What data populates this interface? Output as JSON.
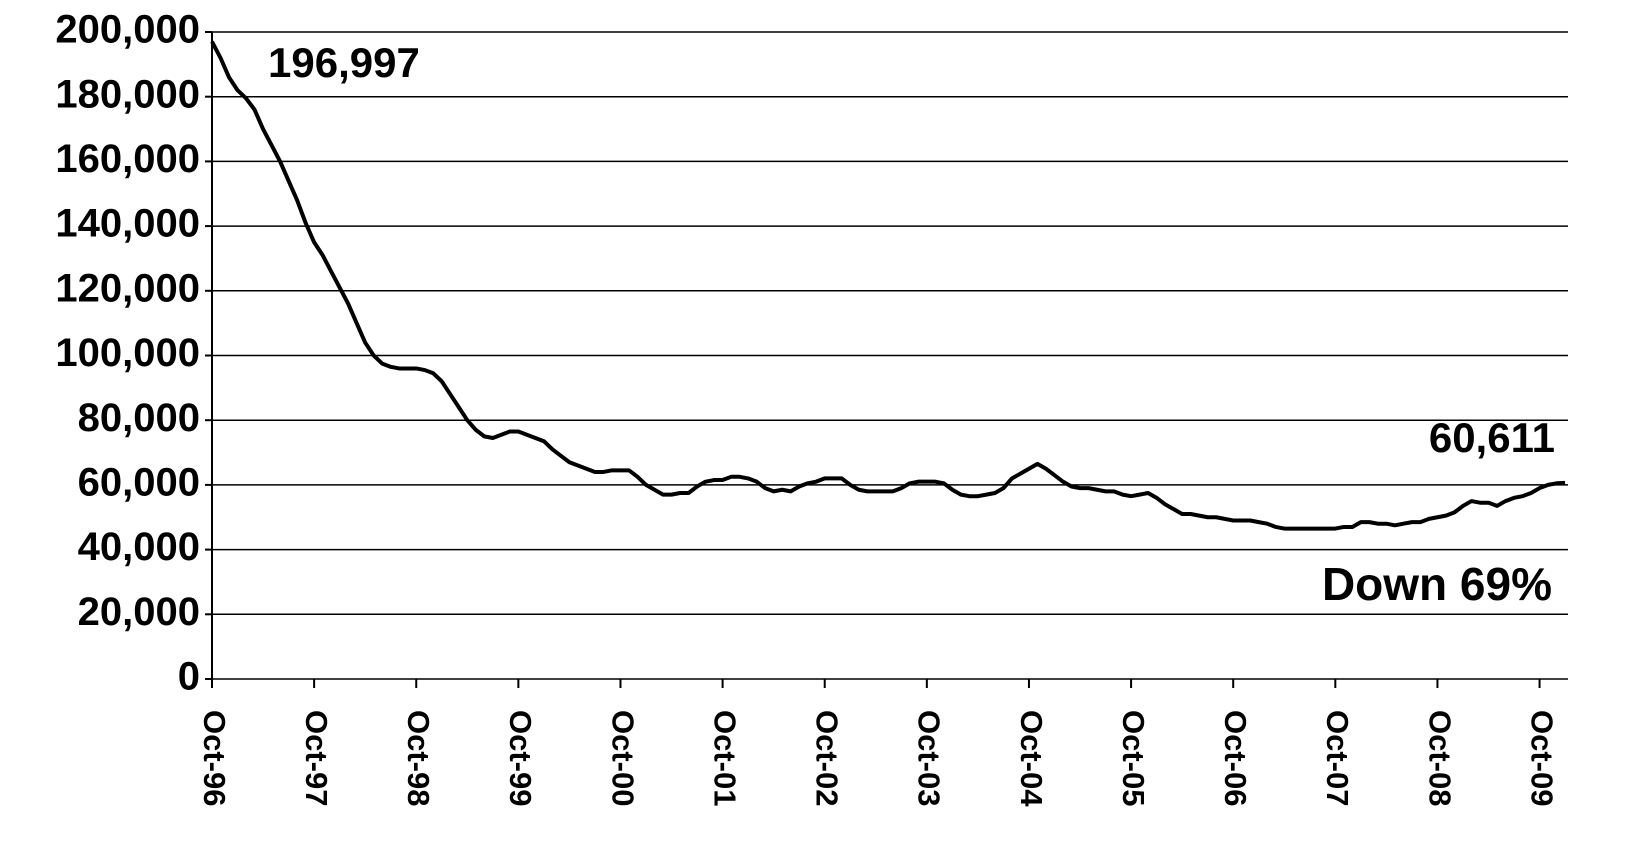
{
  "chart_data": {
    "type": "line",
    "categories": [
      "Oct-96",
      null,
      null,
      null,
      null,
      null,
      null,
      null,
      null,
      null,
      null,
      null,
      "Oct-97",
      null,
      null,
      null,
      null,
      null,
      null,
      null,
      null,
      null,
      null,
      null,
      "Oct-98",
      null,
      null,
      null,
      null,
      null,
      null,
      null,
      null,
      null,
      null,
      null,
      "Oct-99",
      null,
      null,
      null,
      null,
      null,
      null,
      null,
      null,
      null,
      null,
      null,
      "Oct-00",
      null,
      null,
      null,
      null,
      null,
      null,
      null,
      null,
      null,
      null,
      null,
      "Oct-01",
      null,
      null,
      null,
      null,
      null,
      null,
      null,
      null,
      null,
      null,
      null,
      "Oct-02",
      null,
      null,
      null,
      null,
      null,
      null,
      null,
      null,
      null,
      null,
      null,
      "Oct-03",
      null,
      null,
      null,
      null,
      null,
      null,
      null,
      null,
      null,
      null,
      null,
      "Oct-04",
      null,
      null,
      null,
      null,
      null,
      null,
      null,
      null,
      null,
      null,
      null,
      "Oct-05",
      null,
      null,
      null,
      null,
      null,
      null,
      null,
      null,
      null,
      null,
      null,
      "Oct-06",
      null,
      null,
      null,
      null,
      null,
      null,
      null,
      null,
      null,
      null,
      null,
      "Oct-07",
      null,
      null,
      null,
      null,
      null,
      null,
      null,
      null,
      null,
      null,
      null,
      "Oct-08",
      null,
      null,
      null,
      null,
      null,
      null,
      null,
      null,
      null,
      null,
      null,
      "Oct-09",
      null,
      null,
      null
    ],
    "values": [
      196997,
      192000,
      186000,
      182000,
      179500,
      176000,
      170000,
      165000,
      160000,
      154000,
      148000,
      141000,
      135000,
      131000,
      126000,
      121000,
      116000,
      110000,
      104000,
      100000,
      97500,
      96500,
      96000,
      96000,
      96000,
      95500,
      94500,
      92000,
      88000,
      84000,
      80000,
      77000,
      75000,
      74500,
      75500,
      76500,
      76500,
      75500,
      74500,
      73500,
      71000,
      69000,
      67000,
      66000,
      65000,
      64000,
      64000,
      64500,
      64500,
      64500,
      62500,
      60000,
      58500,
      57000,
      57000,
      57500,
      57500,
      59500,
      61000,
      61500,
      61500,
      62500,
      62500,
      62000,
      61000,
      59000,
      58000,
      58500,
      58000,
      59500,
      60500,
      61000,
      62000,
      62000,
      62000,
      60000,
      58500,
      58000,
      58000,
      58000,
      58000,
      59000,
      60500,
      61000,
      61000,
      61000,
      60500,
      58500,
      57000,
      56500,
      56500,
      57000,
      57500,
      59000,
      62000,
      63500,
      65000,
      66500,
      65000,
      63000,
      61000,
      59500,
      59000,
      59000,
      58500,
      58000,
      58000,
      57000,
      56500,
      57000,
      57500,
      56000,
      54000,
      52500,
      51000,
      51000,
      50500,
      50000,
      50000,
      49500,
      49000,
      49000,
      49000,
      48500,
      48000,
      47000,
      46500,
      46500,
      46500,
      46500,
      46500,
      46500,
      46500,
      47000,
      47000,
      48500,
      48500,
      48000,
      48000,
      47500,
      48000,
      48500,
      48500,
      49500,
      50000,
      50500,
      51500,
      53500,
      55000,
      54500,
      54500,
      53500,
      55000,
      56000,
      56500,
      57500,
      59000,
      60000,
      60500,
      60611
    ],
    "color": "#000000",
    "ylim": [
      0,
      200000
    ],
    "yticks": [
      0,
      {
        "value": 20000,
        "label": "20,000"
      },
      {
        "value": 40000,
        "label": "40,000"
      },
      {
        "value": 60000,
        "label": "60,000"
      },
      {
        "value": 80000,
        "label": "80,000"
      },
      {
        "value": 100000,
        "label": "100,000"
      },
      {
        "value": 120000,
        "label": "120,000"
      },
      {
        "value": 140000,
        "label": "140,000"
      },
      {
        "value": 160000,
        "label": "160,000"
      },
      {
        "value": 180000,
        "label": "180,000"
      },
      {
        "value": 200000,
        "label": "200,000"
      }
    ],
    "grid": true,
    "annotations": [
      "196,997",
      "60,611",
      "Down 69%"
    ]
  }
}
